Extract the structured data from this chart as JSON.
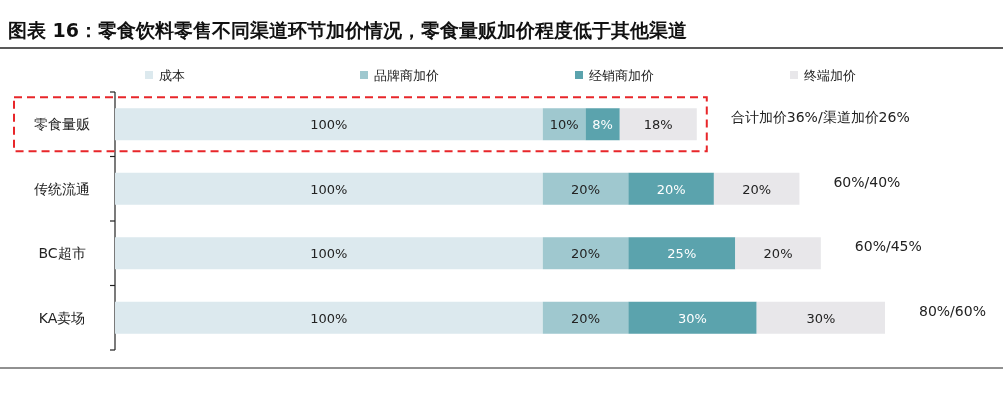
{
  "chart_data": {
    "type": "bar",
    "orientation": "horizontal",
    "stacked": true,
    "legend": "top",
    "title": "图表 16：零食饮料零售不同渠道环节加价情况，零食量贩加价程度低于其他渠道",
    "categories": [
      "零食量贩",
      "传统流通",
      "BC超市",
      "KA卖场"
    ],
    "series": [
      {
        "name": "成本",
        "color": "#dce9ee",
        "values": [
          100,
          100,
          100,
          100
        ],
        "value_labels": [
          "100%",
          "100%",
          "100%",
          "100%"
        ]
      },
      {
        "name": "品牌商加价",
        "color": "#9fc8cf",
        "values": [
          10,
          20,
          20,
          20
        ],
        "value_labels": [
          "10%",
          "20%",
          "20%",
          "20%"
        ]
      },
      {
        "name": "经销商加价",
        "color": "#5ba3ad",
        "values": [
          8,
          20,
          25,
          30
        ],
        "value_labels": [
          "8%",
          "20%",
          "25%",
          "30%"
        ]
      },
      {
        "name": "终端加价",
        "color": "#e8e7ea",
        "values": [
          18,
          20,
          20,
          30
        ],
        "value_labels": [
          "18%",
          "20%",
          "20%",
          "30%"
        ]
      }
    ],
    "annotations": [
      {
        "text": "合计加价36%/渠道加价26%",
        "x": 136,
        "y": "零食量贩"
      },
      {
        "text": "60%/40%",
        "x": 160,
        "y": "传统流通"
      },
      {
        "text": "60%/45%",
        "x": 165,
        "y": "BC超市"
      },
      {
        "text": "80%/60%",
        "x": 180,
        "y": "KA卖场"
      }
    ]
  }
}
